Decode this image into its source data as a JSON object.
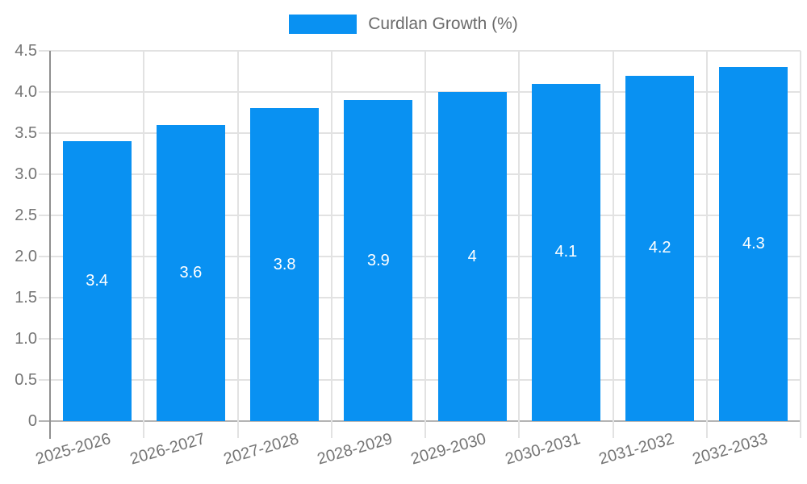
{
  "chart_data": {
    "type": "bar",
    "title": "",
    "legend_label": "Curdlan Growth (%)",
    "legend_position": "top-center",
    "categories": [
      "2025-2026",
      "2026-2027",
      "2027-2028",
      "2028-2029",
      "2029-2030",
      "2030-2031",
      "2031-2032",
      "2032-2033"
    ],
    "values": [
      3.4,
      3.6,
      3.8,
      3.9,
      4,
      4.1,
      4.2,
      4.3
    ],
    "bar_labels": [
      "3.4",
      "3.6",
      "3.8",
      "3.9",
      "4",
      "4.1",
      "4.2",
      "4.3"
    ],
    "xlabel": "",
    "ylabel": "",
    "ylim": [
      0,
      4.5
    ],
    "ytick_step": 0.5,
    "ytick_labels": [
      "0",
      "0.5",
      "1.0",
      "1.5",
      "2.0",
      "2.5",
      "3.0",
      "3.5",
      "4.0",
      "4.5"
    ],
    "grid": "on",
    "colors": {
      "bar": "#0991f2",
      "grid": "#e2e2e2",
      "axis_line": "#8f8f8f",
      "baseline": "#b3b3b3",
      "tick_label": "#757575",
      "legend_text": "#6b6b6b",
      "bar_label": "#ffffff",
      "background": "#ffffff"
    }
  }
}
